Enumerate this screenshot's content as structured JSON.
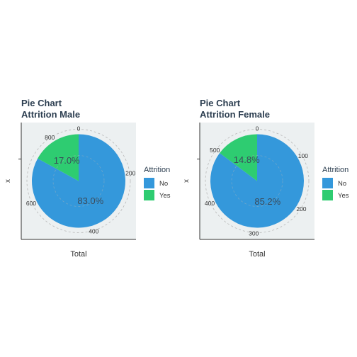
{
  "chart_data": [
    {
      "type": "pie",
      "title": "Pie Chart\nAttrition Male",
      "title_lines": [
        "Pie Chart",
        "Attrition Male"
      ],
      "xlabel": "Total",
      "ylabel": "x",
      "categories": [
        "No",
        "Yes"
      ],
      "values": [
        83.0,
        17.0
      ],
      "percent_labels": [
        "83.0%",
        "17.0%"
      ],
      "total_ticks": [
        0,
        200,
        400,
        600,
        800
      ],
      "total": 882,
      "legend": {
        "title": "Attrition",
        "entries": [
          "No",
          "Yes"
        ],
        "position": "right"
      },
      "colors": {
        "No": "#3498db",
        "Yes": "#2ecc71"
      }
    },
    {
      "type": "pie",
      "title": "Pie Chart\nAttrition Female",
      "title_lines": [
        "Pie Chart",
        "Attrition Female"
      ],
      "xlabel": "Total",
      "ylabel": "x",
      "categories": [
        "No",
        "Yes"
      ],
      "values": [
        85.2,
        14.8
      ],
      "percent_labels": [
        "85.2%",
        "14.8%"
      ],
      "total_ticks": [
        0,
        100,
        200,
        300,
        400,
        500
      ],
      "total": 588,
      "legend": {
        "title": "Attrition",
        "entries": [
          "No",
          "Yes"
        ],
        "position": "right"
      },
      "colors": {
        "No": "#3498db",
        "Yes": "#2ecc71"
      }
    }
  ]
}
